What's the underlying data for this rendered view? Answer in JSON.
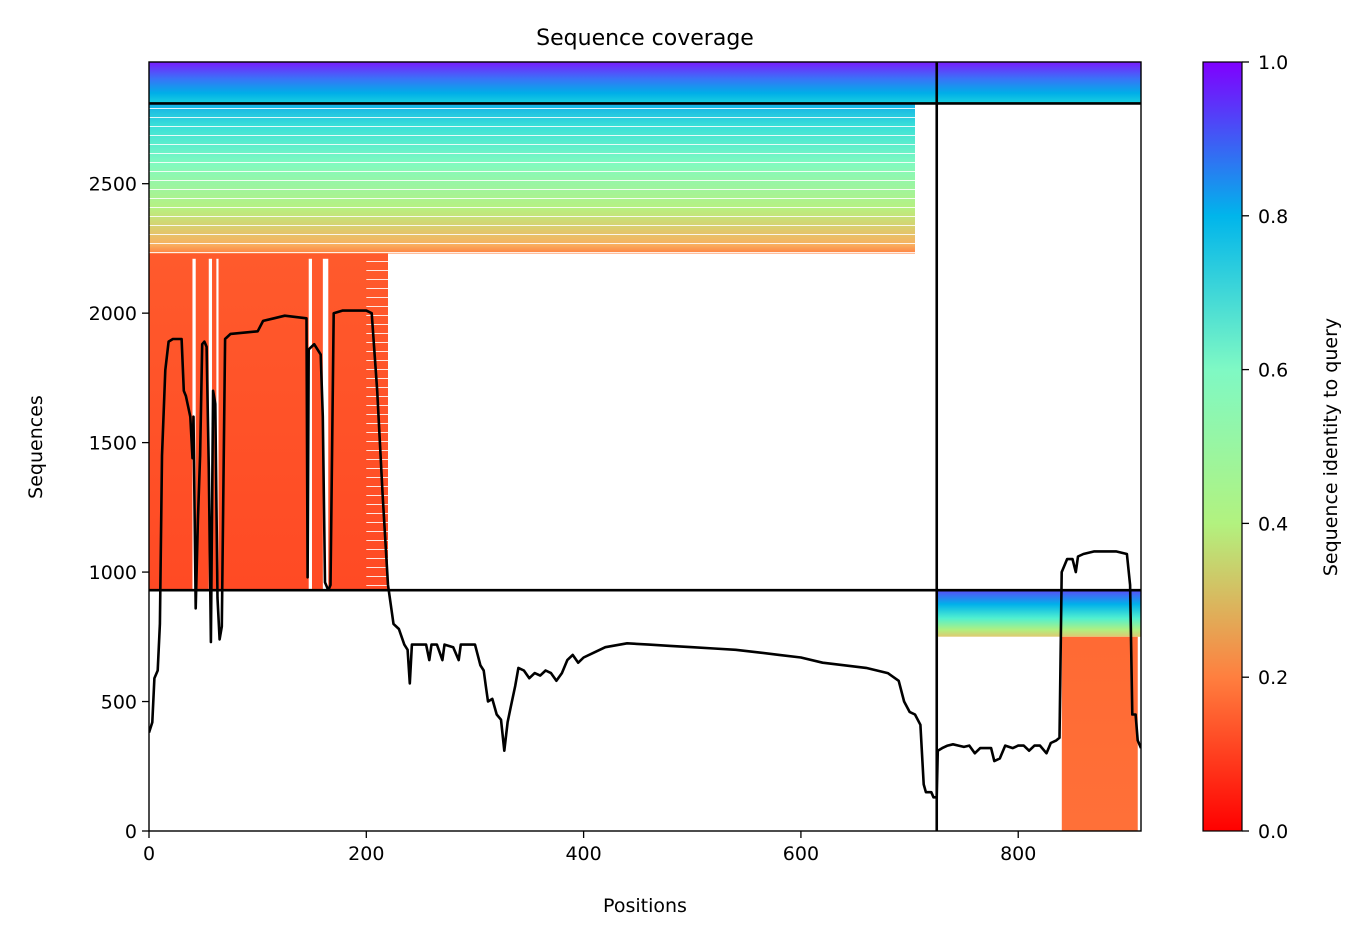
{
  "chart_data": {
    "type": "heatmap",
    "title": "Sequence coverage",
    "xlabel": "Positions",
    "ylabel": "Sequences",
    "xlim": [
      0,
      913
    ],
    "ylim": [
      0,
      2970
    ],
    "x_ticks": [
      0,
      200,
      400,
      600,
      800
    ],
    "y_ticks": [
      0,
      500,
      1000,
      1500,
      2000,
      2500
    ],
    "grid": false,
    "colorbar": {
      "label": "Sequence identity to query",
      "range": [
        0,
        1
      ],
      "ticks": [
        "0.0",
        "0.2",
        "0.4",
        "0.6",
        "0.8",
        "1.0"
      ],
      "colormap": "rainbow_r",
      "stops": [
        "#ff0000",
        "#ff7f3f",
        "#b2f27f",
        "#7ff9c4",
        "#00b5eb",
        "#8000ff"
      ]
    },
    "chain_boundaries": {
      "vertical_at_position": 725,
      "horizontal_at_sequences": [
        930,
        2810
      ]
    },
    "coverage_blocks": [
      {
        "x_start": 0,
        "x_end": 725,
        "y_start": 2810,
        "y_end": 2970,
        "identity_low": 0.72,
        "identity_high": 1.0
      },
      {
        "x_start": 0,
        "x_end": 705,
        "y_start": 2230,
        "y_end": 2810,
        "identity_low": 0.22,
        "identity_high": 0.74
      },
      {
        "x_start": 0,
        "x_end": 220,
        "y_start": 930,
        "y_end": 2230,
        "identity_low": 0.12,
        "identity_high": 0.16
      },
      {
        "x_start": 725,
        "x_end": 913,
        "y_start": 2810,
        "y_end": 2970,
        "identity_low": 0.72,
        "identity_high": 1.0
      },
      {
        "x_start": 725,
        "x_end": 913,
        "y_start": 750,
        "y_end": 930,
        "identity_low": 0.3,
        "identity_high": 0.95
      },
      {
        "x_start": 840,
        "x_end": 910,
        "y_start": 0,
        "y_end": 750,
        "identity_low": 0.17,
        "identity_high": 0.19
      }
    ],
    "series": [
      {
        "type": "line",
        "color": "#000000",
        "points": [
          [
            0,
            380
          ],
          [
            3,
            420
          ],
          [
            5,
            590
          ],
          [
            8,
            620
          ],
          [
            10,
            800
          ],
          [
            12,
            1450
          ],
          [
            15,
            1780
          ],
          [
            18,
            1890
          ],
          [
            22,
            1900
          ],
          [
            30,
            1900
          ],
          [
            32,
            1700
          ],
          [
            34,
            1680
          ],
          [
            36,
            1640
          ],
          [
            38,
            1600
          ],
          [
            40,
            1440
          ],
          [
            41,
            1600
          ],
          [
            43,
            860
          ],
          [
            45,
            1200
          ],
          [
            47,
            1450
          ],
          [
            49,
            1880
          ],
          [
            51,
            1890
          ],
          [
            53,
            1870
          ],
          [
            55,
            1400
          ],
          [
            57,
            730
          ],
          [
            59,
            1700
          ],
          [
            61,
            1650
          ],
          [
            63,
            900
          ],
          [
            65,
            740
          ],
          [
            67,
            790
          ],
          [
            70,
            1900
          ],
          [
            75,
            1920
          ],
          [
            100,
            1930
          ],
          [
            105,
            1970
          ],
          [
            115,
            1980
          ],
          [
            125,
            1990
          ],
          [
            145,
            1980
          ],
          [
            146,
            980
          ],
          [
            147,
            1860
          ],
          [
            152,
            1880
          ],
          [
            158,
            1840
          ],
          [
            160,
            1600
          ],
          [
            162,
            960
          ],
          [
            165,
            930
          ],
          [
            167,
            950
          ],
          [
            170,
            2000
          ],
          [
            178,
            2010
          ],
          [
            200,
            2010
          ],
          [
            205,
            2000
          ],
          [
            210,
            1700
          ],
          [
            215,
            1300
          ],
          [
            220,
            950
          ],
          [
            225,
            800
          ],
          [
            230,
            780
          ],
          [
            235,
            720
          ],
          [
            238,
            700
          ],
          [
            240,
            570
          ],
          [
            242,
            720
          ],
          [
            255,
            720
          ],
          [
            258,
            660
          ],
          [
            260,
            720
          ],
          [
            265,
            720
          ],
          [
            270,
            660
          ],
          [
            272,
            720
          ],
          [
            280,
            710
          ],
          [
            285,
            660
          ],
          [
            287,
            720
          ],
          [
            300,
            720
          ],
          [
            305,
            640
          ],
          [
            308,
            620
          ],
          [
            310,
            560
          ],
          [
            312,
            500
          ],
          [
            316,
            510
          ],
          [
            320,
            450
          ],
          [
            324,
            430
          ],
          [
            327,
            310
          ],
          [
            330,
            420
          ],
          [
            333,
            480
          ],
          [
            337,
            560
          ],
          [
            340,
            630
          ],
          [
            345,
            620
          ],
          [
            350,
            590
          ],
          [
            355,
            610
          ],
          [
            360,
            600
          ],
          [
            365,
            620
          ],
          [
            370,
            610
          ],
          [
            375,
            580
          ],
          [
            380,
            610
          ],
          [
            385,
            660
          ],
          [
            390,
            680
          ],
          [
            395,
            650
          ],
          [
            400,
            670
          ],
          [
            410,
            690
          ],
          [
            420,
            710
          ],
          [
            440,
            725
          ],
          [
            460,
            720
          ],
          [
            480,
            715
          ],
          [
            500,
            710
          ],
          [
            520,
            705
          ],
          [
            540,
            700
          ],
          [
            560,
            690
          ],
          [
            580,
            680
          ],
          [
            600,
            670
          ],
          [
            620,
            650
          ],
          [
            640,
            640
          ],
          [
            660,
            630
          ],
          [
            680,
            610
          ],
          [
            690,
            580
          ],
          [
            695,
            500
          ],
          [
            700,
            460
          ],
          [
            705,
            450
          ],
          [
            710,
            410
          ],
          [
            713,
            180
          ],
          [
            715,
            150
          ],
          [
            720,
            150
          ],
          [
            722,
            130
          ],
          [
            725,
            130
          ],
          [
            726,
            310
          ],
          [
            730,
            320
          ],
          [
            735,
            330
          ],
          [
            740,
            335
          ],
          [
            745,
            330
          ],
          [
            750,
            325
          ],
          [
            755,
            330
          ],
          [
            760,
            300
          ],
          [
            765,
            320
          ],
          [
            770,
            320
          ],
          [
            775,
            320
          ],
          [
            778,
            270
          ],
          [
            783,
            280
          ],
          [
            788,
            330
          ],
          [
            795,
            320
          ],
          [
            800,
            330
          ],
          [
            805,
            330
          ],
          [
            810,
            310
          ],
          [
            815,
            330
          ],
          [
            820,
            330
          ],
          [
            826,
            300
          ],
          [
            830,
            340
          ],
          [
            835,
            350
          ],
          [
            838,
            360
          ],
          [
            840,
            1000
          ],
          [
            845,
            1050
          ],
          [
            850,
            1050
          ],
          [
            853,
            1000
          ],
          [
            855,
            1060
          ],
          [
            860,
            1070
          ],
          [
            870,
            1080
          ],
          [
            880,
            1080
          ],
          [
            890,
            1080
          ],
          [
            900,
            1070
          ],
          [
            903,
            950
          ],
          [
            905,
            450
          ],
          [
            908,
            450
          ],
          [
            910,
            350
          ],
          [
            913,
            320
          ]
        ]
      }
    ]
  }
}
